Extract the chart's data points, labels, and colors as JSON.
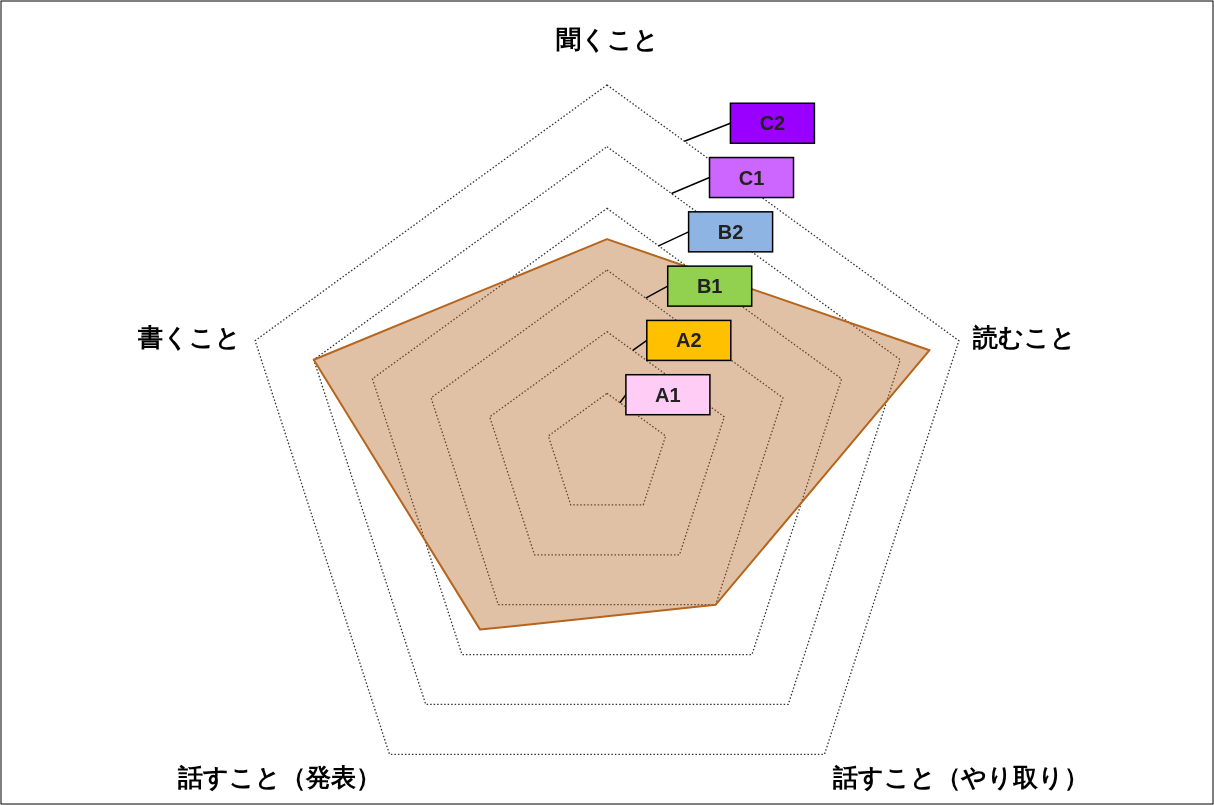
{
  "chart_data": {
    "type": "radar",
    "categories": [
      "聞くこと",
      "読むこと",
      "話すこと（やり取り）",
      "話すこと（発表）",
      "書くこと"
    ],
    "series": [
      {
        "color": "#b5651d",
        "values": [
          3.5,
          5.5,
          3.0,
          3.5,
          5.0
        ]
      }
    ],
    "ylim": [
      0,
      6
    ],
    "yticks": [
      {
        "value": 1,
        "label": "A1"
      },
      {
        "value": 2,
        "label": "A2"
      },
      {
        "value": 3,
        "label": "B1"
      },
      {
        "value": 4,
        "label": "B2"
      },
      {
        "value": 5,
        "label": "C1"
      },
      {
        "value": 6,
        "label": "C2"
      }
    ],
    "colors": [
      "#ffccf5",
      "#ffc000",
      "#92d050",
      "#8eb4e3",
      "#cc66ff",
      "#9900ff"
    ],
    "grid": true
  }
}
